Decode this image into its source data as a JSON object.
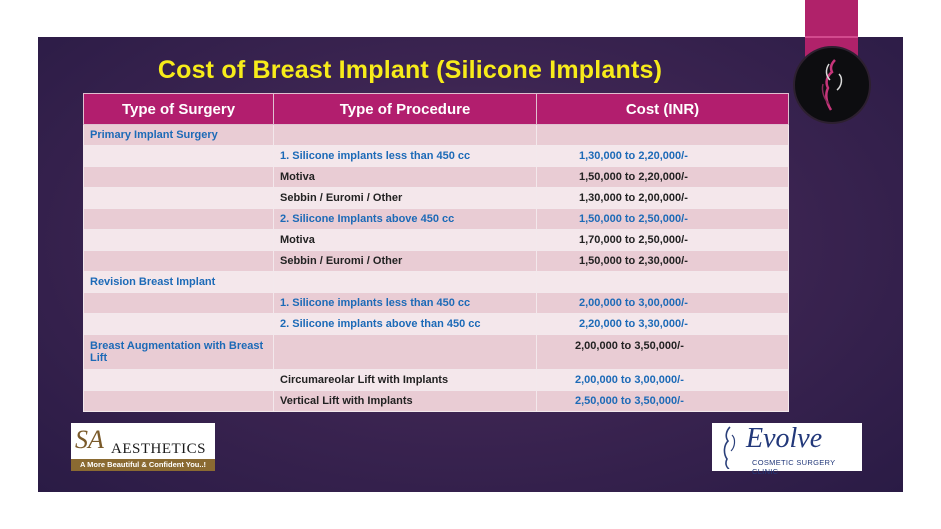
{
  "title": "Cost of Breast Implant (Silicone Implants)",
  "table": {
    "headers": [
      "Type of Surgery",
      "Type of Procedure",
      "Cost (INR)"
    ],
    "rows": [
      {
        "surgery": "Primary Implant Surgery",
        "procedure": "",
        "cost": ""
      },
      {
        "surgery": "",
        "procedure": "1. Silicone implants less than 450 cc",
        "cost": "1,30,000 to 2,20,000/-"
      },
      {
        "surgery": "",
        "procedure": "Motiva",
        "cost": "1,50,000 to 2,20,000/-"
      },
      {
        "surgery": "",
        "procedure": "Sebbin / Euromi / Other",
        "cost": "1,30,000 to 2,00,000/-"
      },
      {
        "surgery": "",
        "procedure": "2. Silicone Implants above 450 cc",
        "cost": "1,50,000 to 2,50,000/-"
      },
      {
        "surgery": "",
        "procedure": "Motiva",
        "cost": "1,70,000 to 2,50,000/-"
      },
      {
        "surgery": "",
        "procedure": "Sebbin / Euromi / Other",
        "cost": "1,50,000 to 2,30,000/-"
      },
      {
        "surgery": "Revision Breast Implant",
        "procedure": "",
        "cost": ""
      },
      {
        "surgery": "",
        "procedure": "1. Silicone implants less than 450 cc",
        "cost": "2,00,000 to 3,00,000/-"
      },
      {
        "surgery": "",
        "procedure": "2. Silicone implants above than 450 cc",
        "cost": "2,20,000 to 3,30,000/-"
      },
      {
        "surgery": "Breast Augmentation with Breast Lift",
        "procedure": "",
        "cost": "2,00,000 to 3,50,000/-"
      },
      {
        "surgery": "",
        "procedure": "Circumareolar Lift with Implants",
        "cost": "2,00,000 to 3,00,000/-"
      },
      {
        "surgery": "",
        "procedure": "Vertical Lift with Implants",
        "cost": "2,50,000 to 3,50,000/-"
      }
    ]
  },
  "logos": {
    "left": {
      "mark": "SA",
      "name": "AESTHETICS",
      "tagline": "A More Beautiful & Confident You..!"
    },
    "right": {
      "name": "Evolve",
      "tagline": "COSMETIC SURGERY CLINIC"
    }
  },
  "colors": {
    "accent": "#b21e6e",
    "title": "#f7ec1a",
    "blue_text": "#1c6ab7"
  }
}
